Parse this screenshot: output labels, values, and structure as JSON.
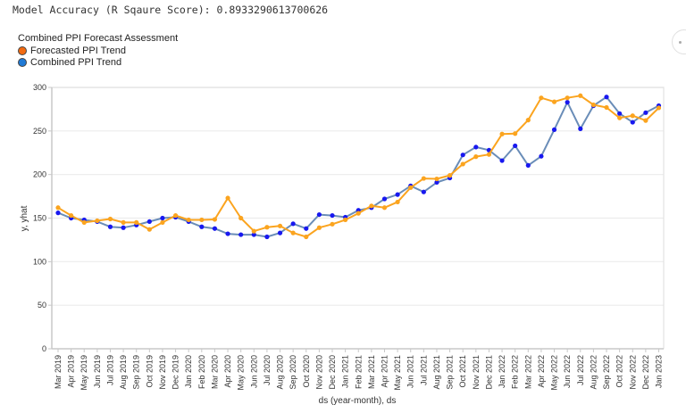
{
  "header": {
    "accuracy_text": "Model Accuracy (R Sqaure Score): 0.8933290613700626"
  },
  "legend": {
    "title": "Combined PPI Forecast Assessment",
    "items": [
      {
        "label": "Forecasted PPI Trend",
        "color": "#F26A10"
      },
      {
        "label": "Combined PPI Trend",
        "color": "#1F7AD6"
      }
    ]
  },
  "colors": {
    "forecast_line": "#FBA41F",
    "forecast_point": "#FBA41F",
    "combined_line": "#6A8DB8",
    "combined_point": "#1818F0",
    "grid": "#ececec",
    "axis": "#c8c8c8"
  },
  "chart_data": {
    "type": "line",
    "title": "Combined PPI Forecast Assessment",
    "xlabel": "ds (year-month), ds",
    "ylabel": "y, yhat",
    "ylim": [
      0,
      300
    ],
    "yticks": [
      0,
      50,
      100,
      150,
      200,
      250,
      300
    ],
    "grid": true,
    "legend_position": "top-left",
    "categories": [
      "Mar 2019",
      "Apr 2019",
      "May 2019",
      "Jun 2019",
      "Jul 2019",
      "Aug 2019",
      "Sep 2019",
      "Oct 2019",
      "Nov 2019",
      "Dec 2019",
      "Jan 2020",
      "Feb 2020",
      "Mar 2020",
      "Apr 2020",
      "May 2020",
      "Jun 2020",
      "Jul 2020",
      "Aug 2020",
      "Sep 2020",
      "Oct 2020",
      "Nov 2020",
      "Dec 2020",
      "Jan 2021",
      "Feb 2021",
      "Mar 2021",
      "Apr 2021",
      "May 2021",
      "Jun 2021",
      "Jul 2021",
      "Aug 2021",
      "Sep 2021",
      "Oct 2021",
      "Nov 2021",
      "Dec 2021",
      "Jan 2022",
      "Feb 2022",
      "Mar 2022",
      "Apr 2022",
      "May 2022",
      "Jun 2022",
      "Jul 2022",
      "Aug 2022",
      "Sep 2022",
      "Oct 2022",
      "Nov 2022",
      "Dec 2022",
      "Jan 2023"
    ],
    "series": [
      {
        "name": "Forecasted PPI Trend",
        "field": "yhat",
        "values": [
          162,
          153,
          145,
          147,
          149,
          145,
          145,
          137,
          145,
          153,
          148,
          148,
          148.5,
          173,
          150,
          135,
          139.5,
          141,
          133,
          128.5,
          139,
          143,
          148,
          155.5,
          164,
          162,
          168.5,
          185,
          195.5,
          195,
          199,
          212,
          220.5,
          223,
          246.5,
          247,
          262.5,
          288,
          283.5,
          288,
          290.5,
          280,
          277,
          265,
          267.5,
          262,
          276.5
        ]
      },
      {
        "name": "Combined PPI Trend",
        "field": "y",
        "values": [
          156,
          150,
          148,
          146,
          140,
          139,
          142,
          146,
          150,
          151,
          146,
          140,
          138,
          132,
          131,
          131,
          128.5,
          133,
          143.5,
          138,
          154,
          153,
          151,
          159,
          162,
          172,
          177,
          187,
          180,
          191,
          196,
          222.5,
          231.5,
          228,
          216,
          233,
          210.5,
          221,
          251.5,
          283,
          252.5,
          279,
          289,
          270,
          260,
          271,
          279
        ]
      }
    ]
  },
  "toolbar": {
    "more_icon": "more-options-icon"
  }
}
